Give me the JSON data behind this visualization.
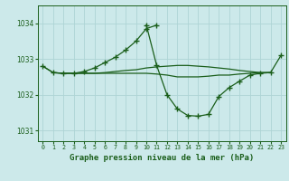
{
  "background_color": "#cce9ea",
  "grid_color": "#aed4d5",
  "line_color": "#1a5e1a",
  "title": "Graphe pression niveau de la mer (hPa)",
  "xlim": [
    -0.5,
    23.5
  ],
  "ylim": [
    1030.7,
    1034.5
  ],
  "yticks": [
    1031,
    1032,
    1033,
    1034
  ],
  "xticks": [
    0,
    1,
    2,
    3,
    4,
    5,
    6,
    7,
    8,
    9,
    10,
    11,
    12,
    13,
    14,
    15,
    16,
    17,
    18,
    19,
    20,
    21,
    22,
    23
  ],
  "series": [
    {
      "x": [
        0,
        1,
        2,
        3,
        4,
        5,
        6,
        7,
        8,
        9,
        10,
        11
      ],
      "y": [
        1032.8,
        1032.62,
        1032.6,
        1032.6,
        1032.65,
        1032.75,
        1032.9,
        1033.05,
        1033.25,
        1033.5,
        1033.85,
        1033.95
      ],
      "marker": "+"
    },
    {
      "x": [
        1,
        2,
        3,
        4,
        5,
        6,
        7,
        8,
        9,
        10,
        11,
        12,
        13,
        14,
        15,
        16,
        17,
        18,
        19,
        20,
        21,
        22
      ],
      "y": [
        1032.62,
        1032.6,
        1032.6,
        1032.6,
        1032.6,
        1032.62,
        1032.65,
        1032.68,
        1032.7,
        1032.75,
        1032.78,
        1032.8,
        1032.82,
        1032.82,
        1032.8,
        1032.78,
        1032.75,
        1032.72,
        1032.68,
        1032.65,
        1032.62,
        1032.62
      ],
      "marker": null
    },
    {
      "x": [
        0,
        1,
        2,
        3,
        4,
        5,
        6,
        7,
        8,
        9,
        10,
        11,
        12,
        13,
        14,
        15,
        16,
        17,
        18,
        19,
        20,
        21,
        22
      ],
      "y": [
        1032.8,
        1032.62,
        1032.6,
        1032.6,
        1032.6,
        1032.6,
        1032.6,
        1032.6,
        1032.6,
        1032.6,
        1032.6,
        1032.58,
        1032.55,
        1032.5,
        1032.5,
        1032.5,
        1032.52,
        1032.55,
        1032.55,
        1032.58,
        1032.6,
        1032.62,
        1032.62
      ],
      "marker": null
    },
    {
      "x": [
        10,
        11,
        12,
        13,
        14,
        15,
        16,
        17,
        18,
        19,
        20,
        21,
        22,
        23
      ],
      "y": [
        1033.95,
        1032.82,
        1032.0,
        1031.6,
        1031.42,
        1031.4,
        1031.45,
        1031.95,
        1032.2,
        1032.38,
        1032.55,
        1032.6,
        1032.62,
        1033.1
      ],
      "marker": "+"
    }
  ]
}
